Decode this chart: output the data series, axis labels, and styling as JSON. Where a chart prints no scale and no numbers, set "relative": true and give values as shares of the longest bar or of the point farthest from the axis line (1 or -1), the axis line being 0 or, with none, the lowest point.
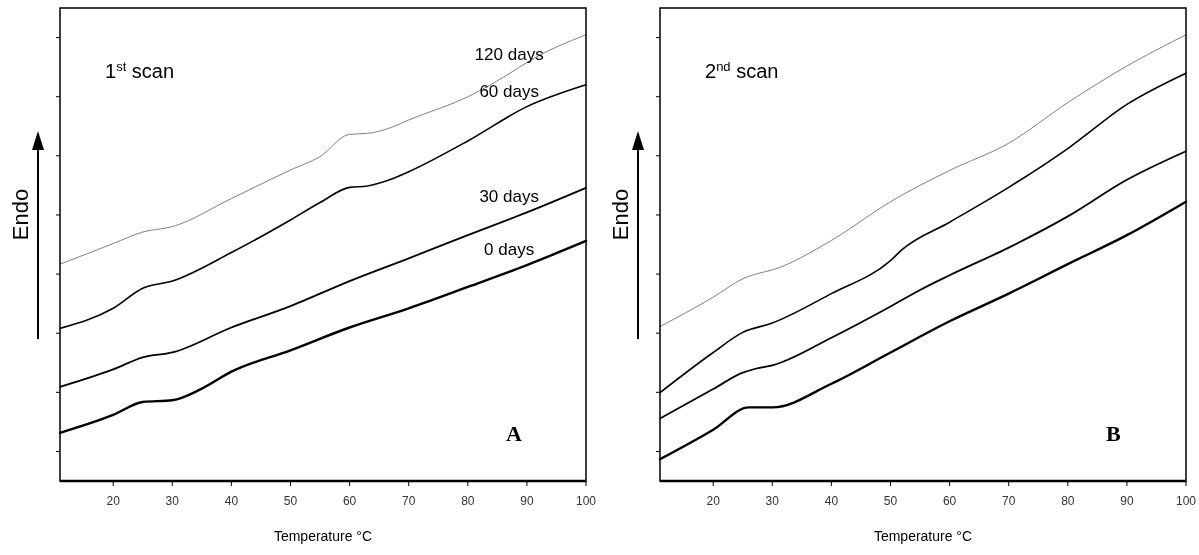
{
  "chart_data": [
    {
      "type": "line",
      "relative": true,
      "xlabel": "Temperature °C",
      "ylabel": "Endo",
      "xlim": [
        11,
        100
      ],
      "xticks": [
        20,
        30,
        40,
        50,
        60,
        70,
        80,
        90,
        100
      ],
      "legend": false,
      "grid": false,
      "annotations": [
        "1$^{st}$ scan",
        "A"
      ],
      "series": [
        {
          "name": "120 days",
          "color": "#808080",
          "x": [
            11,
            20,
            25,
            30,
            40,
            50,
            55,
            60,
            63,
            67,
            70,
            80,
            88,
            90,
            100
          ],
          "values": [
            0.486,
            0.532,
            0.558,
            0.57,
            0.633,
            0.697,
            0.727,
            0.777,
            0.779,
            0.792,
            0.809,
            0.861,
            0.921,
            0.938,
            1
          ]
        },
        {
          "name": "60 days",
          "color": "#000000",
          "x": [
            11,
            20,
            25,
            30,
            40,
            50,
            55,
            60,
            63,
            67,
            70,
            80,
            90,
            100
          ],
          "values": [
            0.342,
            0.387,
            0.432,
            0.448,
            0.512,
            0.585,
            0.624,
            0.658,
            0.661,
            0.676,
            0.693,
            0.762,
            0.839,
            0.888
          ]
        },
        {
          "name": "30 days",
          "color": "#000000",
          "x": [
            11,
            20,
            25,
            30,
            40,
            50,
            60,
            70,
            80,
            90,
            100
          ],
          "values": [
            0.211,
            0.25,
            0.277,
            0.288,
            0.344,
            0.392,
            0.448,
            0.499,
            0.551,
            0.602,
            0.657
          ]
        },
        {
          "name": "0 days",
          "color": "#000000",
          "x": [
            11,
            20,
            25,
            30,
            35,
            40,
            50,
            60,
            70,
            80,
            90,
            100
          ],
          "values": [
            0.108,
            0.148,
            0.177,
            0.181,
            0.207,
            0.245,
            0.293,
            0.344,
            0.387,
            0.435,
            0.484,
            0.538
          ]
        }
      ]
    },
    {
      "type": "line",
      "relative": true,
      "xlabel": "Temperature °C",
      "ylabel": "Endo",
      "xlim": [
        11,
        100
      ],
      "xticks": [
        20,
        30,
        40,
        50,
        60,
        70,
        80,
        90,
        100
      ],
      "legend": false,
      "grid": false,
      "annotations": [
        "2$^{nd}$ scan",
        "B"
      ],
      "series": [
        {
          "color": "#808080",
          "x": [
            11,
            20,
            25,
            27,
            30,
            40,
            50,
            60,
            70,
            80,
            90,
            100
          ],
          "values": [
            0.346,
            0.412,
            0.453,
            0.463,
            0.473,
            0.539,
            0.626,
            0.696,
            0.757,
            0.848,
            0.93,
            1
          ]
        },
        {
          "color": "#000000",
          "x": [
            11,
            20,
            25,
            30,
            40,
            50,
            52,
            60,
            70,
            80,
            90,
            100
          ],
          "values": [
            0.198,
            0.288,
            0.333,
            0.354,
            0.42,
            0.494,
            0.519,
            0.58,
            0.658,
            0.745,
            0.844,
            0.914
          ]
        },
        {
          "color": "#000000",
          "x": [
            11,
            20,
            25,
            27,
            30,
            40,
            50,
            55,
            60,
            70,
            80,
            90,
            100
          ],
          "values": [
            0.14,
            0.206,
            0.243,
            0.251,
            0.259,
            0.321,
            0.391,
            0.428,
            0.461,
            0.523,
            0.593,
            0.675,
            0.739
          ]
        },
        {
          "color": "#000000",
          "x": [
            11,
            20,
            26,
            30,
            40,
            50,
            60,
            70,
            80,
            90,
            100
          ],
          "values": [
            0.049,
            0.115,
            0.165,
            0.165,
            0.218,
            0.288,
            0.358,
            0.42,
            0.486,
            0.551,
            0.626
          ]
        }
      ]
    }
  ]
}
